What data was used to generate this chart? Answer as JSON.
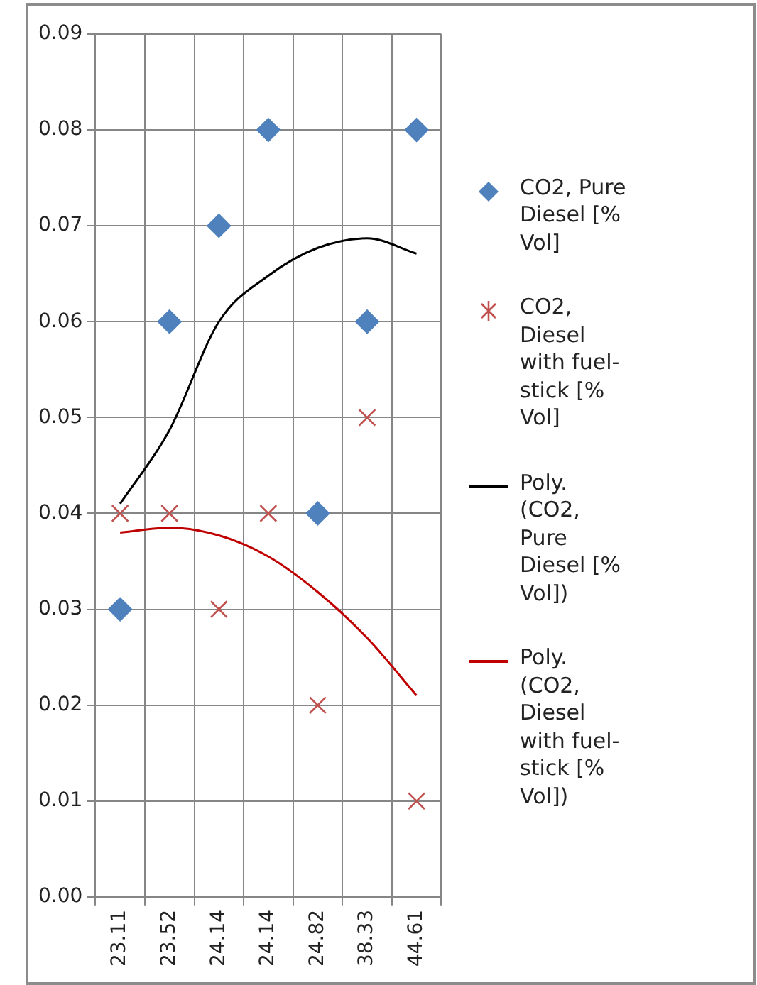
{
  "chart_data": {
    "type": "scatter",
    "categories": [
      "23.11",
      "23.52",
      "24.14",
      "24.14",
      "24.82",
      "38.33",
      "44.61"
    ],
    "series": [
      {
        "name": "CO2,  Pure Diesel [% Vol]",
        "color": "#4f81bd",
        "marker": "diamond",
        "values": [
          0.03,
          0.06,
          0.07,
          0.08,
          0.04,
          0.06,
          0.08
        ]
      },
      {
        "name": "CO2, Diesel with fuel-stick  [% Vol]",
        "color": "#c0504d",
        "marker": "cross",
        "values": [
          0.04,
          0.04,
          0.03,
          0.04,
          0.02,
          0.05,
          0.01
        ]
      },
      {
        "name": "Poly. (CO2,  Pure Diesel [% Vol])",
        "type": "line",
        "color": "#000000",
        "marker": "none",
        "values": [
          0.041,
          0.0487,
          0.06,
          0.0648,
          0.0677,
          0.0687,
          0.0671
        ]
      },
      {
        "name": "Poly. (CO2, Diesel with fuel-stick  [% Vol])",
        "type": "line",
        "color": "#c00000",
        "marker": "none",
        "values": [
          0.038,
          0.0385,
          0.0377,
          0.0355,
          0.0318,
          0.027,
          0.021
        ]
      }
    ],
    "ylim": [
      0,
      0.09
    ],
    "yticks": [
      {
        "value": 0,
        "label": "0.00"
      },
      0.01,
      0.02,
      0.03,
      0.04,
      0.05,
      0.06,
      0.07,
      0.08,
      0.09
    ],
    "grid": true,
    "legend": "right"
  }
}
